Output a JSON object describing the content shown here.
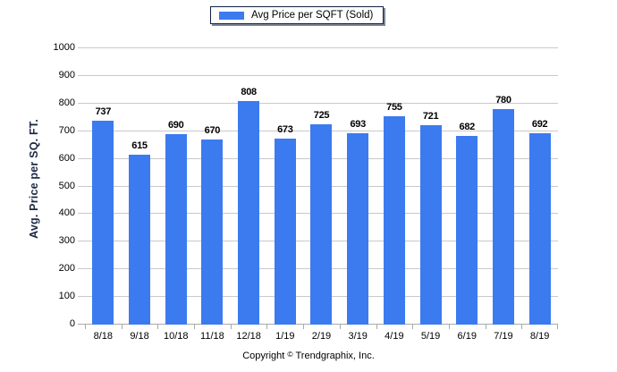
{
  "chart_data": {
    "type": "bar",
    "categories": [
      "8/18",
      "9/18",
      "10/18",
      "11/18",
      "12/18",
      "1/19",
      "2/19",
      "3/19",
      "4/19",
      "5/19",
      "6/19",
      "7/19",
      "8/19"
    ],
    "series": [
      {
        "name": "Avg Price per SQFT (Sold)",
        "values": [
          737,
          615,
          690,
          670,
          808,
          673,
          725,
          693,
          755,
          721,
          682,
          780,
          692
        ],
        "color": "#3b7bef"
      }
    ],
    "title": "",
    "xlabel": "",
    "ylabel": "Avg. Price per SQ. FT.",
    "ylim": [
      0,
      1000
    ],
    "ytick_step": 100,
    "grid": "horizontal",
    "legend_position": "top-center",
    "value_labels": true
  },
  "legend": {
    "label": "Avg Price per SQFT (Sold)",
    "swatch_color": "#3b7bef"
  },
  "footer": {
    "prefix": "Copyright",
    "symbol": "©",
    "suffix": "Trendgraphix, Inc."
  },
  "colors": {
    "bar": "#3b7bef",
    "gridline": "#c9c9c9",
    "axis_line": "#a9a9a9",
    "y_title": "#1c2844",
    "legend_border": "#10223f",
    "text": "#000000"
  }
}
